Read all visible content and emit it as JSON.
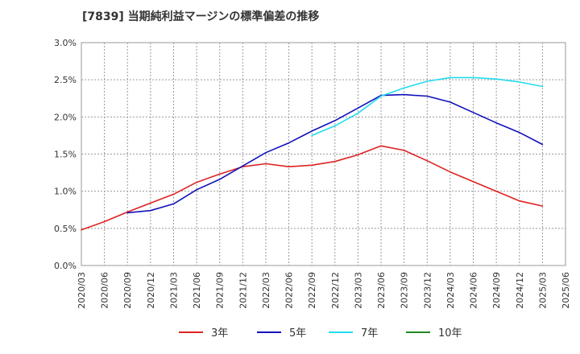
{
  "chart_data": {
    "type": "line",
    "title": "[7839]  当期純利益マージンの標準偏差の推移",
    "xlabel": "",
    "ylabel": "",
    "ylim": [
      0,
      0.03
    ],
    "y_ticks": [
      0,
      0.005,
      0.01,
      0.015,
      0.02,
      0.025,
      0.03
    ],
    "y_tick_labels": [
      "0.0%",
      "0.5%",
      "1.0%",
      "1.5%",
      "2.0%",
      "2.5%",
      "3.0%"
    ],
    "x_ticks": [
      "2020/03",
      "2020/06",
      "2020/09",
      "2020/12",
      "2021/03",
      "2021/06",
      "2021/09",
      "2021/12",
      "2022/03",
      "2022/06",
      "2022/09",
      "2022/12",
      "2023/03",
      "2023/06",
      "2023/09",
      "2023/12",
      "2024/03",
      "2024/06",
      "2024/09",
      "2024/12",
      "2025/03",
      "2025/06"
    ],
    "grid": true,
    "legend_position": "bottom",
    "series": [
      {
        "name": "3年",
        "color": "#dd2222",
        "points": [
          [
            "2020/03",
            0.0048
          ],
          [
            "2020/06",
            0.0059
          ],
          [
            "2020/09",
            0.0072
          ],
          [
            "2020/12",
            0.0084
          ],
          [
            "2021/03",
            0.0096
          ],
          [
            "2021/06",
            0.0112
          ],
          [
            "2021/09",
            0.0123
          ],
          [
            "2021/12",
            0.0133
          ],
          [
            "2022/03",
            0.0137
          ],
          [
            "2022/06",
            0.0133
          ],
          [
            "2022/09",
            0.0135
          ],
          [
            "2022/12",
            0.014
          ],
          [
            "2023/03",
            0.0149
          ],
          [
            "2023/06",
            0.0161
          ],
          [
            "2023/09",
            0.0155
          ],
          [
            "2023/12",
            0.0141
          ],
          [
            "2024/03",
            0.0126
          ],
          [
            "2024/06",
            0.0113
          ],
          [
            "2024/09",
            0.01
          ],
          [
            "2024/12",
            0.0087
          ],
          [
            "2025/03",
            0.008
          ]
        ]
      },
      {
        "name": "5年",
        "color": "#1111bb",
        "points": [
          [
            "2020/09",
            0.0071
          ],
          [
            "2020/12",
            0.0074
          ],
          [
            "2021/03",
            0.0083
          ],
          [
            "2021/06",
            0.0102
          ],
          [
            "2021/09",
            0.0116
          ],
          [
            "2021/12",
            0.0134
          ],
          [
            "2022/03",
            0.0152
          ],
          [
            "2022/06",
            0.0165
          ],
          [
            "2022/09",
            0.0181
          ],
          [
            "2022/12",
            0.0195
          ],
          [
            "2023/03",
            0.0212
          ],
          [
            "2023/06",
            0.0229
          ],
          [
            "2023/09",
            0.023
          ],
          [
            "2023/12",
            0.0228
          ],
          [
            "2024/03",
            0.022
          ],
          [
            "2024/06",
            0.0206
          ],
          [
            "2024/09",
            0.0192
          ],
          [
            "2024/12",
            0.0179
          ],
          [
            "2025/03",
            0.0163
          ]
        ]
      },
      {
        "name": "7年",
        "color": "#22ddee",
        "points": [
          [
            "2022/09",
            0.0175
          ],
          [
            "2022/12",
            0.0188
          ],
          [
            "2023/03",
            0.0205
          ],
          [
            "2023/06",
            0.0228
          ],
          [
            "2023/09",
            0.0239
          ],
          [
            "2023/12",
            0.0248
          ],
          [
            "2024/03",
            0.0253
          ],
          [
            "2024/06",
            0.0253
          ],
          [
            "2024/09",
            0.0251
          ],
          [
            "2024/12",
            0.0247
          ],
          [
            "2025/03",
            0.0241
          ]
        ]
      },
      {
        "name": "10年",
        "color": "#228822",
        "points": []
      }
    ]
  }
}
